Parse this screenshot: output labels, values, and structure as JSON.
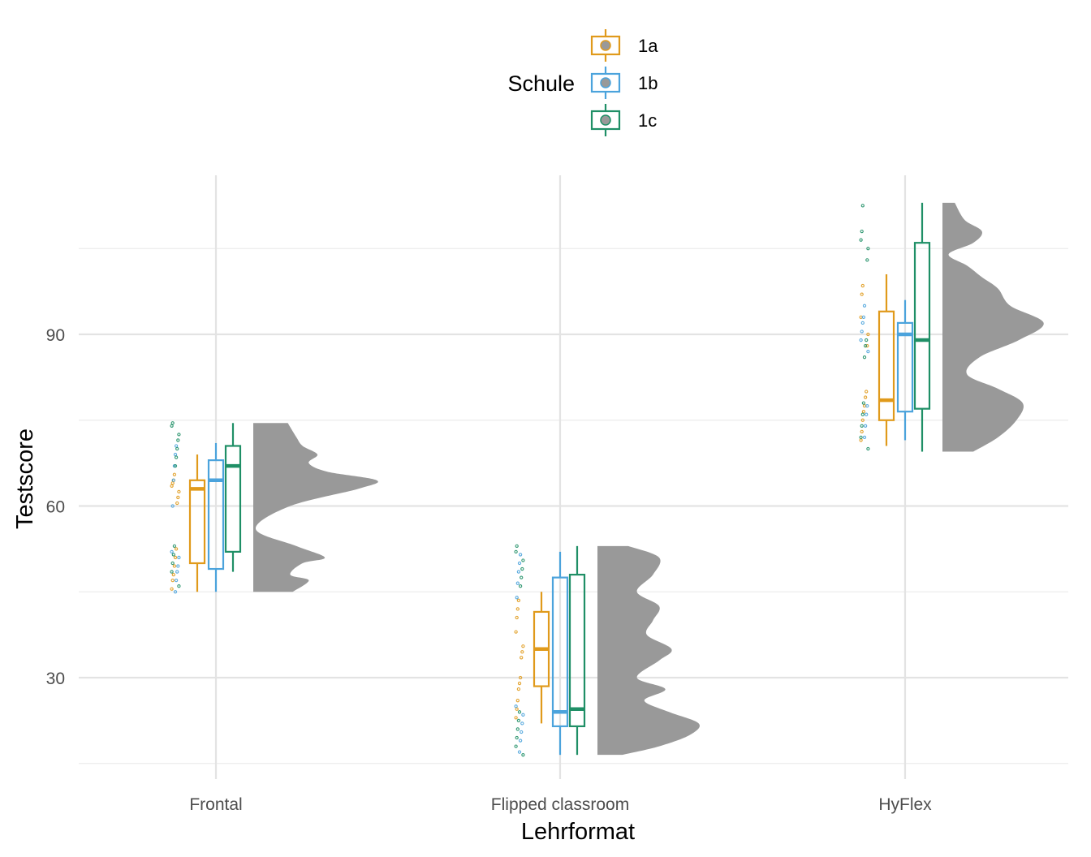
{
  "chart_data": {
    "type": "raincloud",
    "xlabel": "Lehrformat",
    "ylabel": "Testscore",
    "categories": [
      "Frontal",
      "Flipped classroom",
      "HyFlex"
    ],
    "ylim": [
      15,
      118
    ],
    "yticks": [
      30,
      60,
      90
    ],
    "grid": true,
    "legend": {
      "title": "Schule",
      "placement": "top",
      "entries": [
        {
          "name": "1a",
          "color": "#E09A1B"
        },
        {
          "name": "1b",
          "color": "#4BA3DC"
        },
        {
          "name": "1c",
          "color": "#1F8F66"
        }
      ]
    },
    "series": [
      {
        "name": "1a",
        "color": "#E09A1B",
        "boxes": [
          {
            "category": "Frontal",
            "min": 45,
            "q1": 50,
            "median": 63,
            "q3": 64.5,
            "max": 69
          },
          {
            "category": "Flipped classroom",
            "min": 22,
            "q1": 28.5,
            "median": 35,
            "q3": 41.5,
            "max": 45
          },
          {
            "category": "HyFlex",
            "min": 70.5,
            "q1": 75,
            "median": 78.5,
            "q3": 94,
            "max": 100.5
          }
        ],
        "points": [
          {
            "category": "Frontal",
            "values": [
              45.5,
              47,
              48,
              49.5,
              51,
              52.5,
              60.5,
              61.5,
              62.5,
              63.5,
              64,
              64.5,
              65.5
            ]
          },
          {
            "category": "Flipped classroom",
            "values": [
              23,
              24.5,
              26,
              28,
              29,
              30,
              33.5,
              34.5,
              35.5,
              38,
              40.5,
              42,
              43.5
            ]
          },
          {
            "category": "HyFlex",
            "values": [
              71.5,
              73,
              75,
              76.5,
              77.5,
              79,
              80,
              88,
              90,
              93,
              97,
              98.5
            ]
          }
        ]
      },
      {
        "name": "1b",
        "color": "#4BA3DC",
        "boxes": [
          {
            "category": "Frontal",
            "min": 45,
            "q1": 49,
            "median": 64.5,
            "q3": 68,
            "max": 71
          },
          {
            "category": "Flipped classroom",
            "min": 16.5,
            "q1": 21.5,
            "median": 24,
            "q3": 47.5,
            "max": 52
          },
          {
            "category": "HyFlex",
            "min": 71.5,
            "q1": 76.5,
            "median": 90,
            "q3": 92,
            "max": 96
          }
        ],
        "points": [
          {
            "category": "Frontal",
            "values": [
              45,
              47,
              48.5,
              49.5,
              51,
              52,
              60,
              64.5,
              67,
              69,
              70.5
            ]
          },
          {
            "category": "Flipped classroom",
            "values": [
              17,
              19,
              20.5,
              22,
              23.5,
              25,
              44,
              46.5,
              48.5,
              50,
              51.5
            ]
          },
          {
            "category": "HyFlex",
            "values": [
              72,
              74,
              76,
              77.5,
              87,
              89,
              90.5,
              92,
              93,
              95
            ]
          }
        ]
      },
      {
        "name": "1c",
        "color": "#1F8F66",
        "boxes": [
          {
            "category": "Frontal",
            "min": 48.5,
            "q1": 52,
            "median": 67,
            "q3": 70.5,
            "max": 74.5
          },
          {
            "category": "Flipped classroom",
            "min": 16.5,
            "q1": 21.5,
            "median": 24.5,
            "q3": 48,
            "max": 53
          },
          {
            "category": "HyFlex",
            "min": 69.5,
            "q1": 77,
            "median": 89,
            "q3": 106,
            "max": 113
          }
        ],
        "points": [
          {
            "category": "Frontal",
            "values": [
              46,
              48.5,
              50,
              51.5,
              53,
              67,
              68.5,
              70,
              71.5,
              72.5,
              74,
              74.5
            ]
          },
          {
            "category": "Flipped classroom",
            "values": [
              16.5,
              18,
              19.5,
              21,
              22.5,
              24,
              46,
              47.5,
              49,
              50.5,
              52,
              53
            ]
          },
          {
            "category": "HyFlex",
            "values": [
              70,
              72,
              74,
              76,
              78,
              86,
              88,
              89,
              103,
              105,
              106.5,
              108,
              112.5
            ]
          }
        ]
      }
    ],
    "density": {
      "color": "#999999",
      "curves": [
        {
          "category": "Frontal",
          "y": [
            45,
            47,
            48,
            50,
            51,
            53,
            56,
            60,
            63,
            64.5,
            66,
            67.5,
            69,
            70.5,
            72,
            74.5
          ],
          "d": [
            0.32,
            0.45,
            0.3,
            0.4,
            0.58,
            0.35,
            0.02,
            0.3,
            0.85,
            1.0,
            0.6,
            0.45,
            0.52,
            0.4,
            0.35,
            0.28
          ]
        },
        {
          "category": "Flipped classroom",
          "y": [
            16.5,
            18,
            20,
            22,
            24,
            26,
            28,
            30,
            33,
            35,
            37.5,
            40,
            42.5,
            45,
            48,
            51,
            53
          ],
          "d": [
            0.2,
            0.5,
            0.75,
            0.82,
            0.58,
            0.38,
            0.55,
            0.32,
            0.5,
            0.6,
            0.4,
            0.45,
            0.5,
            0.32,
            0.45,
            0.5,
            0.25
          ]
        },
        {
          "category": "HyFlex",
          "y": [
            69.5,
            72,
            75,
            78,
            80.5,
            83,
            86,
            89,
            92,
            95,
            98,
            100,
            102,
            104,
            106,
            108,
            110,
            113
          ],
          "d": [
            0.25,
            0.45,
            0.6,
            0.65,
            0.45,
            0.2,
            0.3,
            0.62,
            0.82,
            0.55,
            0.45,
            0.32,
            0.2,
            0.05,
            0.25,
            0.32,
            0.18,
            0.1
          ]
        }
      ]
    }
  }
}
